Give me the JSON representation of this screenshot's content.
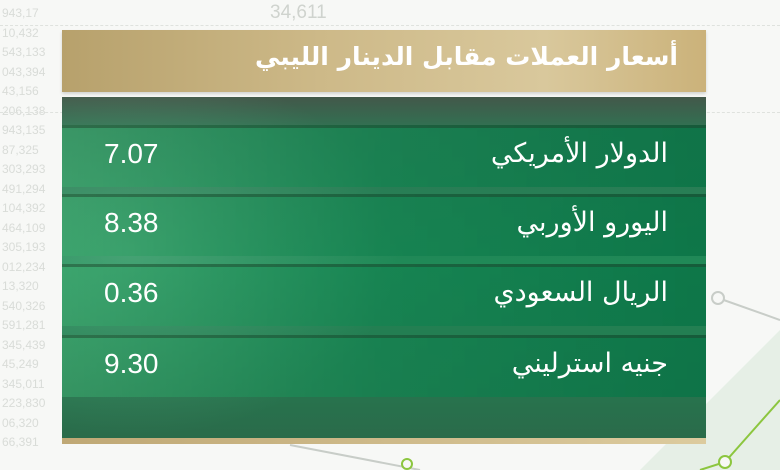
{
  "background": {
    "numbers": [
      "943,17",
      "10,432",
      "543,133",
      "043,394",
      "43,156",
      "206,138",
      "943,135",
      "87,325",
      "303,293",
      "491,294",
      "104,392",
      "464,109",
      "305,193",
      "012,234",
      "13,320",
      "540,326",
      "591,281",
      "345,439",
      "45,249",
      "345,011",
      "223,830",
      "06,320",
      "66,391"
    ],
    "big_number": "34,611"
  },
  "title": "أسعار العملات مقابل الدينار الليبي",
  "rates": [
    {
      "currency": "الدولار الأمريكي",
      "value": "7.07"
    },
    {
      "currency": "اليورو الأوربي",
      "value": "8.38"
    },
    {
      "currency": "الريال السعودي",
      "value": "0.36"
    },
    {
      "currency": "جنيه استرليني",
      "value": "9.30"
    }
  ],
  "colors": {
    "gold": "#cdb988",
    "green": "#1f8a57",
    "dark_green": "#43584a"
  }
}
